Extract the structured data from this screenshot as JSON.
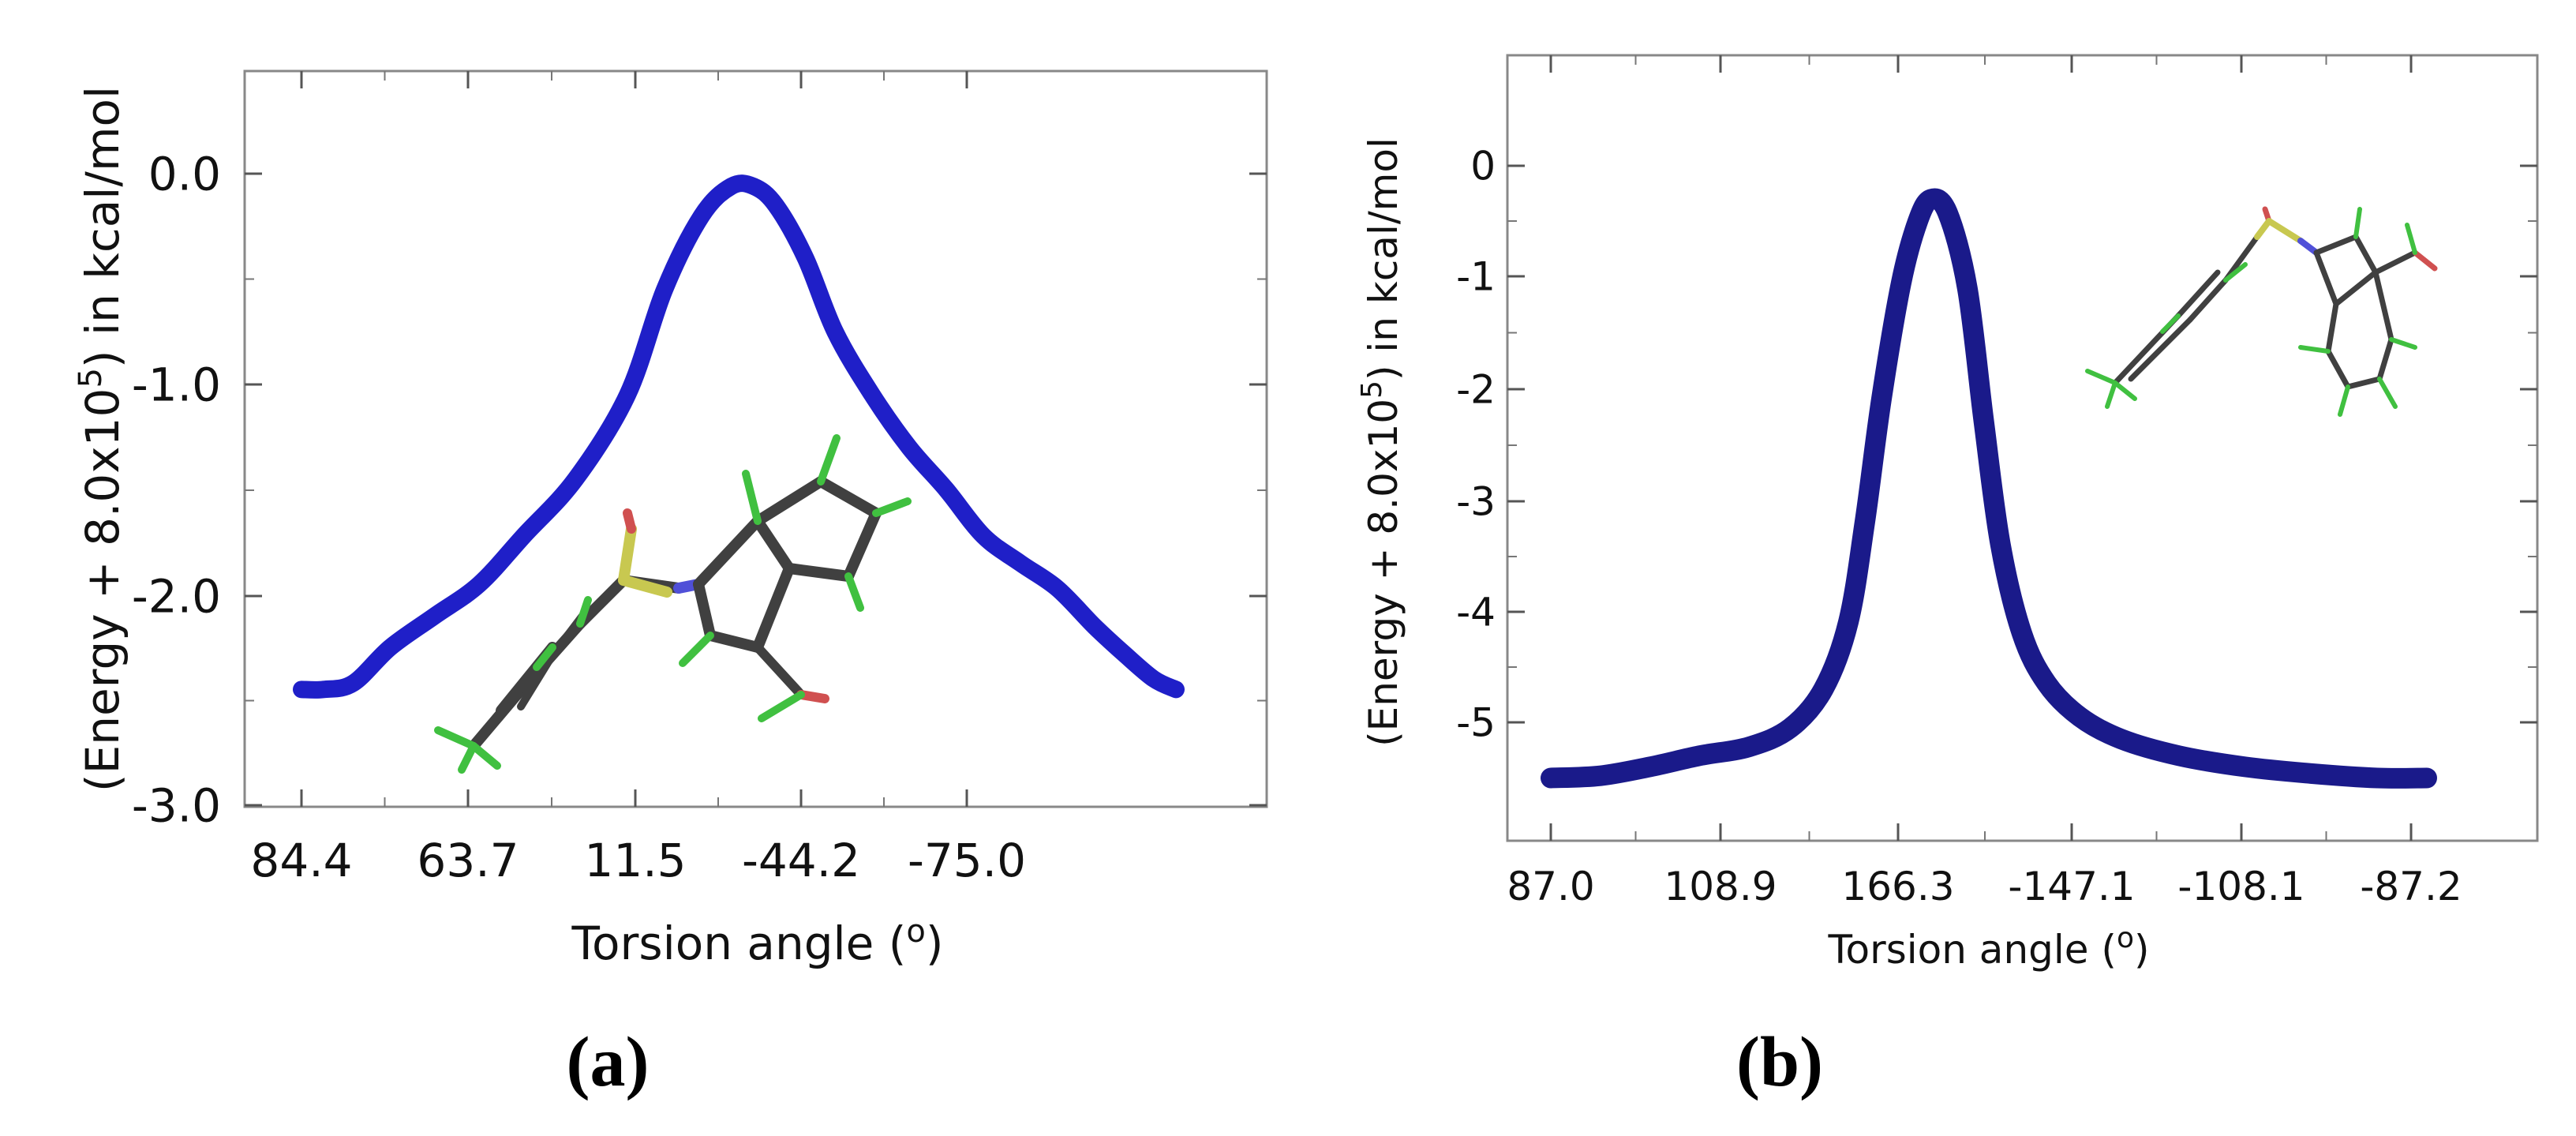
{
  "panels": {
    "a": {
      "label_open": "(",
      "label_letter": "a",
      "label_close": ")"
    },
    "b": {
      "label_open": "(",
      "label_letter": "b",
      "label_close": ")"
    }
  },
  "chart_data": [
    {
      "type": "line",
      "title": "",
      "xlabel": "Torsion angle (o)",
      "ylabel": "(Energy + 8.0x10^5) in kcal/mol",
      "ylabel_parts": {
        "pre": "(Energy + 8.0x10",
        "sup": "5",
        "post": ") in kcal/mol"
      },
      "xlabel_parts": {
        "pre": "Torsion angle (",
        "sup": "o",
        "post": ")"
      },
      "xtick_labels": [
        "84.4",
        "63.7",
        "11.5",
        "-44.2",
        "-75.0"
      ],
      "ytick_labels": [
        "-3.0",
        "-2.0",
        "-1.0",
        "0.0"
      ],
      "ytick_values": [
        -3.0,
        -2.0,
        -1.0,
        0.0
      ],
      "ylim": [
        -3.0,
        0.5
      ],
      "color": "#1f1fc8",
      "inset": "molecular structure (indole sulfonyl molecule)",
      "series": [
        {
          "name": "energy",
          "x": [
            0.0,
            0.15,
            0.35,
            0.6,
            0.9,
            1.2,
            1.5,
            1.85,
            2.2,
            2.45,
            2.7,
            2.9,
            3.05,
            3.2,
            3.4,
            3.6,
            3.85,
            4.1,
            4.35,
            4.6,
            4.85,
            5.1,
            5.35,
            5.55,
            5.75,
            5.9
          ],
          "y": [
            -2.45,
            -2.45,
            -2.42,
            -2.25,
            -2.1,
            -1.95,
            -1.72,
            -1.45,
            -1.05,
            -0.55,
            -0.2,
            -0.06,
            -0.06,
            -0.15,
            -0.4,
            -0.75,
            -1.05,
            -1.3,
            -1.5,
            -1.72,
            -1.85,
            -1.97,
            -2.15,
            -2.28,
            -2.4,
            -2.45
          ]
        }
      ]
    },
    {
      "type": "line",
      "title": "",
      "xlabel": "Torsion angle (o)",
      "ylabel": "(Energy + 8.0x10^5) in kcal/mol",
      "ylabel_parts": {
        "pre": "(Energy + 8.0x10",
        "sup": "5",
        "post": ") in kcal/mol"
      },
      "xlabel_parts": {
        "pre": "Torsion angle (",
        "sup": "o",
        "post": ")"
      },
      "xtick_labels": [
        "87.0",
        "108.9",
        "166.3",
        "-147.1",
        "-108.1",
        "-87.2"
      ],
      "ytick_labels": [
        "-5",
        "-4",
        "-3",
        "-2",
        "-1",
        "0"
      ],
      "ytick_values": [
        -5,
        -4,
        -3,
        -2,
        -1,
        0
      ],
      "ylim": [
        -5.8,
        1.0
      ],
      "color": "#1a1a8a",
      "inset": "molecular structure (indole sulfonyl molecule)",
      "series": [
        {
          "name": "energy",
          "x": [
            0.0,
            0.3,
            0.6,
            0.9,
            1.2,
            1.45,
            1.65,
            1.8,
            1.9,
            2.0,
            2.12,
            2.22,
            2.3,
            2.4,
            2.52,
            2.62,
            2.72,
            2.85,
            3.0,
            3.2,
            3.45,
            3.8,
            4.2,
            4.6,
            5.0,
            5.3
          ],
          "y": [
            -5.5,
            -5.48,
            -5.4,
            -5.3,
            -5.22,
            -5.05,
            -4.7,
            -4.1,
            -3.2,
            -2.1,
            -1.05,
            -0.5,
            -0.3,
            -0.42,
            -1.1,
            -2.3,
            -3.4,
            -4.2,
            -4.65,
            -4.95,
            -5.15,
            -5.3,
            -5.4,
            -5.46,
            -5.5,
            -5.5
          ]
        }
      ]
    }
  ]
}
